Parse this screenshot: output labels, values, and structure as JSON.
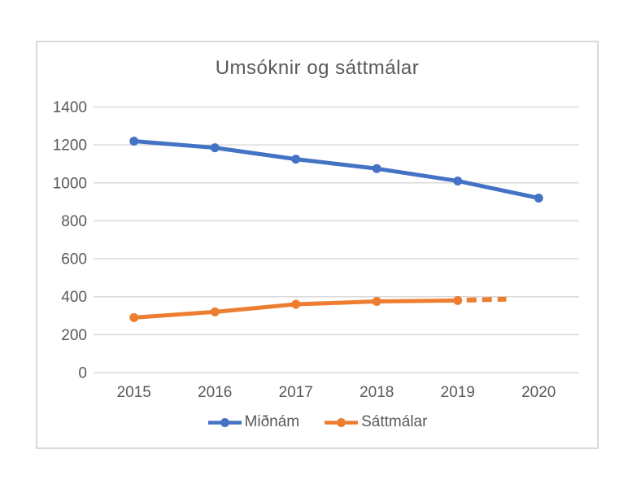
{
  "chart_data": {
    "type": "line",
    "title": "Umsóknir og sáttmálar",
    "categories": [
      "2015",
      "2016",
      "2017",
      "2018",
      "2019",
      "2020"
    ],
    "series": [
      {
        "name": "Miðnám",
        "color": "#4472C4",
        "style": "solid",
        "values": [
          1220,
          1185,
          1125,
          1075,
          1010,
          920
        ]
      },
      {
        "name": "Sáttmálar",
        "color": "#ED7D31",
        "style": "solid",
        "values": [
          290,
          320,
          360,
          375,
          380,
          null
        ],
        "projection": {
          "style": "dashed",
          "from_category": "2019",
          "from_value": 380,
          "to_value": 387,
          "end_position_fraction": 0.6
        }
      }
    ],
    "ylim": [
      0,
      1400
    ],
    "y_ticks": [
      0,
      200,
      400,
      600,
      800,
      1000,
      1200,
      1400
    ],
    "grid": true,
    "legend_position": "bottom",
    "xlabel": "",
    "ylabel": ""
  },
  "colors": {
    "background": "#FFFFFF",
    "frame_border": "#D9D9D9",
    "gridline": "#D9D9D9",
    "axis_text": "#595959",
    "title_text": "#595959"
  }
}
